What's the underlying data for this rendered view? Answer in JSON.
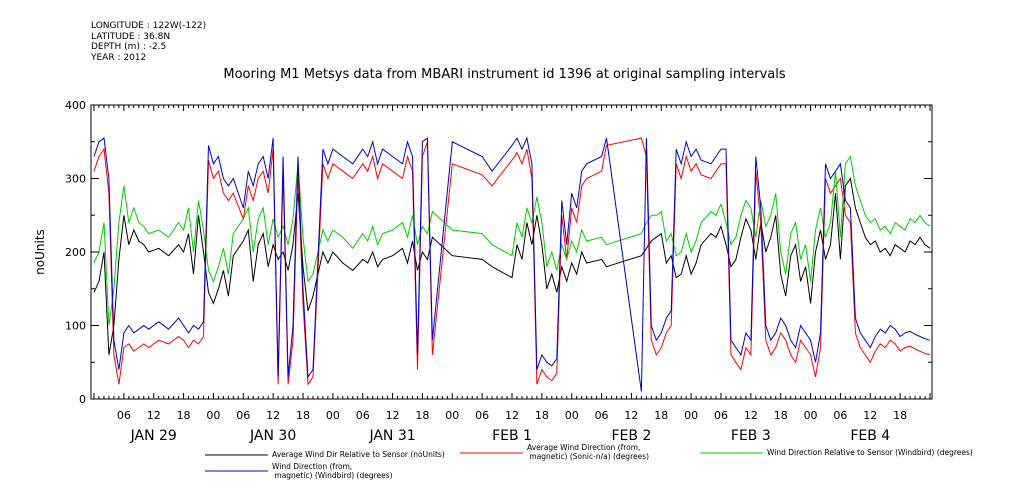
{
  "header": {
    "longitude": "LONGITUDE : 122W(-122)",
    "latitude": "LATITUDE : 36.8N",
    "depth": "DEPTH (m) : -2.5",
    "year": "YEAR : 2012"
  },
  "chart_data": {
    "type": "line",
    "title": "Mooring M1 Metsys data from MBARI instrument id 1396 at original sampling intervals",
    "ylabel": "noUnits",
    "xlabel": "",
    "ylim": [
      0,
      400
    ],
    "yticks": [
      0,
      100,
      200,
      300,
      400
    ],
    "xlim": [
      0,
      168
    ],
    "hour_ticks": [
      "06",
      "12",
      "18",
      "00",
      "06",
      "12",
      "18",
      "00",
      "06",
      "12",
      "18",
      "00",
      "06",
      "12",
      "18",
      "00",
      "06",
      "12",
      "18",
      "00",
      "06",
      "12",
      "18",
      "00",
      "06",
      "12",
      "18"
    ],
    "day_labels": [
      "JAN 29",
      "JAN 30",
      "JAN 31",
      "FEB  1",
      "FEB  2",
      "FEB  3",
      "FEB  4"
    ],
    "grid": false,
    "legend_placement": "bottom",
    "series": [
      {
        "name": "Average Wind Dir Relative to Sensor (noUnits)",
        "color": "#000000",
        "x": [
          0,
          1,
          2,
          3,
          4,
          5,
          6,
          7,
          8,
          9,
          10,
          11,
          13,
          15,
          17,
          18,
          19,
          20,
          21,
          22,
          23,
          24,
          25,
          26,
          27,
          28,
          30,
          31,
          32,
          33,
          34,
          35,
          36,
          37,
          38,
          39,
          40,
          41,
          42,
          43,
          44,
          46,
          47,
          48,
          50,
          52,
          54,
          55,
          56,
          57,
          58,
          60,
          62,
          63,
          64,
          65,
          66,
          67,
          68,
          72,
          78,
          80,
          84,
          85,
          86,
          87,
          88,
          89,
          90,
          91,
          92,
          93,
          94,
          95,
          96,
          97,
          98,
          99,
          102,
          103,
          110,
          111,
          112,
          113,
          114,
          115,
          116,
          117,
          118,
          119,
          120,
          121,
          122,
          124,
          125,
          126,
          127,
          128,
          129,
          130,
          131,
          132,
          133,
          134,
          135,
          136,
          137,
          138,
          139,
          140,
          141,
          142,
          143,
          144,
          145,
          146,
          147,
          148,
          149,
          150,
          151,
          152,
          153,
          154,
          155,
          156,
          157,
          158,
          159,
          160,
          161,
          162,
          163,
          164,
          165,
          166,
          167,
          168
        ],
        "y": [
          145,
          160,
          200,
          60,
          100,
          190,
          250,
          210,
          230,
          215,
          210,
          200,
          205,
          195,
          210,
          200,
          225,
          170,
          250,
          200,
          145,
          130,
          150,
          175,
          140,
          195,
          215,
          230,
          160,
          210,
          225,
          180,
          210,
          190,
          200,
          175,
          210,
          280,
          180,
          120,
          140,
          200,
          185,
          200,
          185,
          175,
          190,
          185,
          200,
          180,
          190,
          195,
          205,
          185,
          215,
          175,
          200,
          190,
          220,
          195,
          190,
          180,
          165,
          210,
          190,
          240,
          210,
          250,
          210,
          150,
          170,
          145,
          180,
          160,
          185,
          170,
          200,
          185,
          190,
          180,
          195,
          205,
          215,
          220,
          225,
          185,
          195,
          165,
          170,
          195,
          170,
          185,
          210,
          225,
          220,
          235,
          210,
          180,
          190,
          220,
          245,
          230,
          190,
          240,
          200,
          220,
          250,
          170,
          140,
          195,
          210,
          160,
          180,
          130,
          200,
          230,
          190,
          210,
          280,
          190,
          290,
          300,
          260,
          240,
          220,
          210,
          215,
          200,
          205,
          195,
          210,
          205,
          200,
          215,
          210,
          220,
          210,
          205
        ]
      },
      {
        "name": "Average Wind Direction (from, magnetic) (Sonic-n/a) (degrees)",
        "color": "#ff0000",
        "x": [
          0,
          1,
          2,
          3,
          4,
          5,
          6,
          7,
          8,
          9,
          10,
          11,
          13,
          15,
          17,
          18,
          19,
          20,
          21,
          22,
          23,
          24,
          25,
          26,
          27,
          28,
          30,
          31,
          32,
          33,
          34,
          35,
          36,
          37,
          38,
          39,
          40,
          41,
          42,
          43,
          44,
          46,
          47,
          48,
          50,
          52,
          54,
          55,
          56,
          57,
          58,
          60,
          62,
          63,
          64,
          65,
          66,
          67,
          68,
          72,
          78,
          80,
          84,
          85,
          86,
          87,
          88,
          89,
          90,
          91,
          92,
          93,
          94,
          95,
          96,
          97,
          98,
          99,
          102,
          103,
          110,
          111,
          112,
          113,
          114,
          115,
          116,
          117,
          118,
          119,
          120,
          121,
          122,
          124,
          125,
          126,
          127,
          128,
          129,
          130,
          131,
          132,
          133,
          134,
          135,
          136,
          137,
          138,
          139,
          140,
          141,
          142,
          143,
          144,
          145,
          146,
          147,
          148,
          149,
          150,
          151,
          152,
          153,
          154,
          155,
          156,
          157,
          158,
          159,
          160,
          161,
          162,
          163,
          164,
          165,
          166,
          167,
          168
        ],
        "y": [
          310,
          330,
          340,
          280,
          60,
          20,
          70,
          75,
          65,
          70,
          75,
          70,
          80,
          75,
          85,
          80,
          70,
          80,
          75,
          85,
          325,
          300,
          310,
          280,
          270,
          280,
          245,
          290,
          270,
          300,
          310,
          280,
          340,
          20,
          310,
          20,
          80,
          310,
          130,
          20,
          30,
          320,
          300,
          320,
          310,
          300,
          320,
          310,
          330,
          300,
          320,
          310,
          300,
          330,
          310,
          40,
          330,
          350,
          60,
          320,
          305,
          290,
          325,
          335,
          320,
          340,
          300,
          20,
          40,
          30,
          25,
          35,
          250,
          190,
          260,
          240,
          290,
          300,
          310,
          345,
          355,
          330,
          80,
          60,
          70,
          90,
          100,
          320,
          300,
          330,
          310,
          320,
          305,
          300,
          310,
          320,
          320,
          60,
          50,
          40,
          70,
          60,
          310,
          240,
          80,
          60,
          70,
          90,
          80,
          60,
          50,
          80,
          70,
          60,
          30,
          70,
          300,
          280,
          290,
          300,
          250,
          240,
          90,
          70,
          60,
          50,
          65,
          75,
          70,
          80,
          75,
          65,
          70,
          72,
          68,
          65,
          62,
          60
        ]
      },
      {
        "name": "Wind Direction Relative to Sensor (Windbird) (degrees)",
        "color": "#00cc00",
        "x": [
          0,
          1,
          2,
          3,
          4,
          5,
          6,
          7,
          8,
          9,
          10,
          11,
          13,
          15,
          17,
          18,
          19,
          20,
          21,
          22,
          23,
          24,
          25,
          26,
          27,
          28,
          30,
          31,
          32,
          33,
          34,
          35,
          36,
          37,
          38,
          39,
          40,
          41,
          42,
          43,
          44,
          46,
          47,
          48,
          50,
          52,
          54,
          55,
          56,
          57,
          58,
          60,
          62,
          63,
          64,
          65,
          66,
          67,
          68,
          72,
          78,
          80,
          84,
          85,
          86,
          87,
          88,
          89,
          90,
          91,
          92,
          93,
          94,
          95,
          96,
          97,
          98,
          99,
          102,
          103,
          110,
          111,
          112,
          113,
          114,
          115,
          116,
          117,
          118,
          119,
          120,
          121,
          122,
          124,
          125,
          126,
          127,
          128,
          129,
          130,
          131,
          132,
          133,
          134,
          135,
          136,
          137,
          138,
          139,
          140,
          141,
          142,
          143,
          144,
          145,
          146,
          147,
          148,
          149,
          150,
          151,
          152,
          153,
          154,
          155,
          156,
          157,
          158,
          159,
          160,
          161,
          162,
          163,
          164,
          165,
          166,
          167,
          168
        ],
        "y": [
          185,
          200,
          240,
          100,
          150,
          240,
          290,
          240,
          260,
          240,
          235,
          225,
          230,
          220,
          240,
          230,
          260,
          200,
          270,
          230,
          175,
          160,
          180,
          205,
          170,
          225,
          245,
          260,
          200,
          245,
          260,
          210,
          245,
          220,
          235,
          210,
          245,
          320,
          220,
          160,
          170,
          230,
          215,
          230,
          220,
          205,
          225,
          215,
          235,
          210,
          225,
          230,
          240,
          220,
          250,
          210,
          235,
          225,
          255,
          230,
          225,
          210,
          195,
          240,
          220,
          260,
          240,
          275,
          240,
          180,
          200,
          175,
          210,
          190,
          215,
          200,
          230,
          215,
          220,
          210,
          225,
          240,
          250,
          250,
          255,
          215,
          225,
          195,
          200,
          225,
          200,
          215,
          240,
          255,
          250,
          265,
          240,
          210,
          220,
          250,
          270,
          260,
          220,
          270,
          235,
          250,
          280,
          200,
          170,
          225,
          240,
          190,
          210,
          160,
          230,
          260,
          220,
          240,
          310,
          220,
          320,
          330,
          290,
          270,
          250,
          240,
          245,
          230,
          235,
          225,
          240,
          235,
          230,
          245,
          240,
          250,
          240,
          235
        ]
      },
      {
        "name": "Wind Direction (from, magnetic) (Windbird) (degrees)",
        "color": "#0000cc",
        "x": [
          0,
          1,
          2,
          3,
          4,
          5,
          6,
          7,
          8,
          9,
          10,
          11,
          13,
          15,
          17,
          18,
          19,
          20,
          21,
          22,
          23,
          24,
          25,
          26,
          27,
          28,
          30,
          31,
          32,
          33,
          34,
          35,
          36,
          37,
          38,
          39,
          40,
          41,
          42,
          43,
          44,
          46,
          47,
          48,
          50,
          52,
          54,
          55,
          56,
          57,
          58,
          60,
          62,
          63,
          64,
          65,
          66,
          67,
          68,
          72,
          78,
          80,
          84,
          85,
          86,
          87,
          88,
          89,
          90,
          91,
          92,
          93,
          94,
          95,
          96,
          97,
          98,
          99,
          102,
          103,
          110,
          111,
          112,
          113,
          114,
          115,
          116,
          117,
          118,
          119,
          120,
          121,
          122,
          124,
          125,
          126,
          127,
          128,
          129,
          130,
          131,
          132,
          133,
          134,
          135,
          136,
          137,
          138,
          139,
          140,
          141,
          142,
          143,
          144,
          145,
          146,
          147,
          148,
          149,
          150,
          151,
          152,
          153,
          154,
          155,
          156,
          157,
          158,
          159,
          160,
          161,
          162,
          163,
          164,
          165,
          166,
          167,
          168
        ],
        "y": [
          330,
          350,
          355,
          300,
          80,
          40,
          90,
          100,
          90,
          95,
          100,
          95,
          105,
          95,
          110,
          100,
          90,
          100,
          95,
          105,
          345,
          320,
          330,
          300,
          290,
          300,
          260,
          310,
          290,
          320,
          330,
          300,
          355,
          30,
          330,
          30,
          100,
          330,
          150,
          30,
          40,
          340,
          320,
          340,
          330,
          320,
          340,
          330,
          350,
          320,
          340,
          330,
          320,
          350,
          330,
          60,
          350,
          355,
          80,
          350,
          330,
          310,
          345,
          355,
          340,
          355,
          320,
          40,
          60,
          50,
          45,
          55,
          270,
          210,
          280,
          260,
          310,
          320,
          330,
          355,
          10,
          355,
          100,
          80,
          90,
          110,
          120,
          340,
          320,
          350,
          330,
          340,
          325,
          320,
          330,
          340,
          340,
          80,
          70,
          60,
          90,
          80,
          330,
          260,
          100,
          80,
          90,
          110,
          100,
          80,
          70,
          100,
          90,
          80,
          50,
          90,
          320,
          300,
          310,
          320,
          270,
          260,
          110,
          90,
          80,
          70,
          85,
          95,
          90,
          100,
          95,
          85,
          90,
          92,
          88,
          85,
          82,
          80
        ]
      }
    ]
  }
}
